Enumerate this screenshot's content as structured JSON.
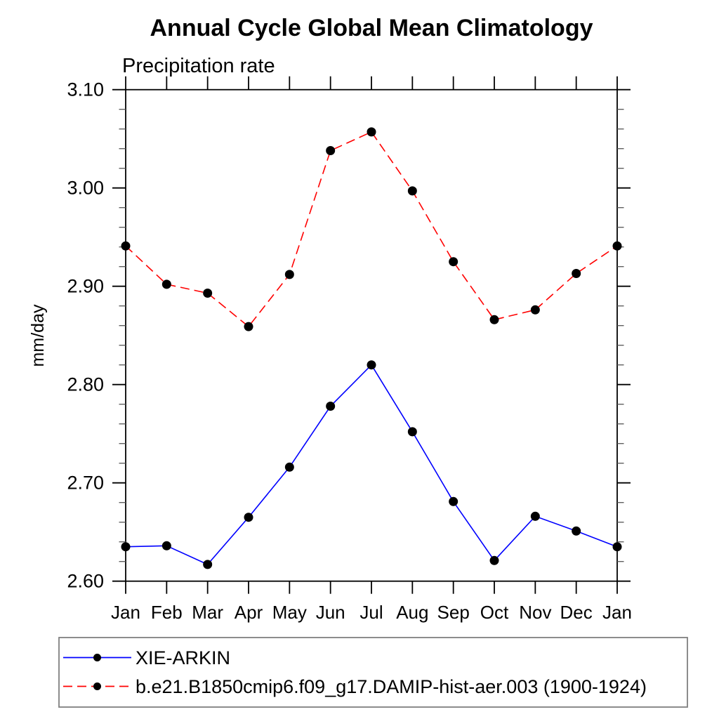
{
  "page": {
    "background": "#ffffff"
  },
  "chart_data": {
    "type": "line",
    "title": "Annual Cycle Global Mean Climatology",
    "subtitle": "Precipitation rate",
    "ylabel": "mm/day",
    "xlabel": "",
    "categories": [
      "Jan",
      "Feb",
      "Mar",
      "Apr",
      "May",
      "Jun",
      "Jul",
      "Aug",
      "Sep",
      "Oct",
      "Nov",
      "Dec",
      "Jan"
    ],
    "ylim": [
      2.6,
      3.1
    ],
    "ytick_labels": [
      "2.60",
      "2.70",
      "2.80",
      "2.90",
      "3.00",
      "3.10"
    ],
    "y_minor_step": 0.02,
    "grid": false,
    "legend_position": "bottom-left-box",
    "marker": {
      "shape": "circle",
      "color": "#000000"
    },
    "axis_color": "#000000",
    "legend_border_color": "#808080",
    "series": [
      {
        "name": "XIE-ARKIN",
        "color": "#0000ff",
        "line_style": "solid",
        "values": [
          2.635,
          2.636,
          2.617,
          2.665,
          2.716,
          2.778,
          2.82,
          2.752,
          2.681,
          2.621,
          2.666,
          2.651,
          2.635
        ]
      },
      {
        "name": "b.e21.B1850cmip6.f09_g17.DAMIP-hist-aer.003 (1900-1924)",
        "color": "#ff0000",
        "line_style": "dashed",
        "values": [
          2.941,
          2.902,
          2.893,
          2.859,
          2.912,
          3.038,
          3.057,
          2.997,
          2.925,
          2.866,
          2.876,
          2.913,
          2.941
        ]
      }
    ]
  }
}
